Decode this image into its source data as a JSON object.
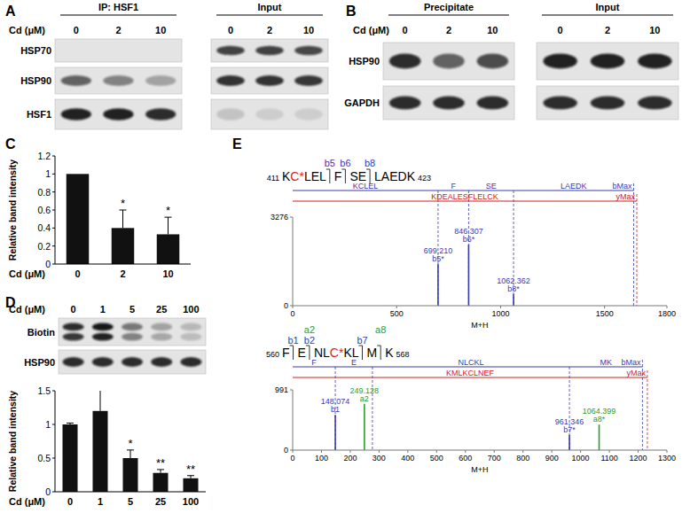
{
  "blots": [
    {
      "panel": "A",
      "condition_label": "Cd (μM)",
      "groups": [
        {
          "title": "IP: HSF1",
          "lanes": [
            "0",
            "2",
            "10"
          ]
        },
        {
          "title": "Input",
          "lanes": [
            "0",
            "2",
            "10"
          ]
        }
      ],
      "rows": [
        {
          "name": "HSP70",
          "bands": [
            [
              0,
              0,
              0
            ],
            [
              0.75,
              0.75,
              0.72
            ]
          ]
        },
        {
          "name": "HSP90",
          "bands": [
            [
              0.6,
              0.45,
              0.3
            ],
            [
              0.82,
              0.82,
              0.8
            ]
          ]
        },
        {
          "name": "HSF1",
          "bands": [
            [
              0.9,
              0.9,
              0.85
            ],
            [
              0.15,
              0.1,
              0.1
            ]
          ]
        }
      ]
    },
    {
      "panel": "B",
      "condition_label": "Cd (μM)",
      "groups": [
        {
          "title": "Precipitate",
          "lanes": [
            "0",
            "2",
            "10"
          ]
        },
        {
          "title": "Input",
          "lanes": [
            "0",
            "2",
            "10"
          ]
        }
      ],
      "rows": [
        {
          "name": "HSP90",
          "bands": [
            [
              0.85,
              0.6,
              0.7
            ],
            [
              0.9,
              0.9,
              0.9
            ]
          ]
        },
        {
          "name": "GAPDH",
          "bands": [
            [
              0.85,
              0.85,
              0.85
            ],
            [
              0.85,
              0.85,
              0.85
            ]
          ]
        }
      ]
    },
    {
      "panel": "D",
      "condition_label": "Cd (μM)",
      "groups": [
        {
          "lanes": [
            "0",
            "1",
            "5",
            "25",
            "100"
          ]
        }
      ],
      "rows": [
        {
          "name": "Biotin",
          "bands": [
            [
              [
                0.85,
                0.8
              ],
              [
                0.95,
                0.9
              ],
              [
                0.5,
                0.45
              ],
              [
                0.3,
                0.28
              ],
              [
                0.2,
                0.18
              ]
            ]
          ]
        },
        {
          "name": "HSP90",
          "bands": [
            [
              0.85,
              0.85,
              0.85,
              0.85,
              0.85
            ]
          ]
        }
      ]
    }
  ],
  "chart_data": [
    {
      "panel": "C",
      "type": "bar",
      "categories": [
        "0",
        "2",
        "10"
      ],
      "values": [
        1,
        0.4,
        0.33
      ],
      "errors": [
        null,
        0.2,
        0.19
      ],
      "significance": [
        null,
        "*",
        "*"
      ],
      "x_label": "Cd (μM)",
      "y_label": "Relative band intensity",
      "color": "#111111",
      "ylim": [
        0,
        1.2
      ],
      "yticks": [
        0,
        0.2,
        0.4,
        0.6,
        0.8,
        1,
        1.2
      ]
    },
    {
      "type": "bar",
      "categories": [
        "0",
        "1",
        "5",
        "25",
        "100"
      ],
      "values": [
        1,
        1.2,
        0.5,
        0.28,
        0.2
      ],
      "errors": [
        0.02,
        0.35,
        0.12,
        0.05,
        0.04
      ],
      "significance": [
        null,
        null,
        "*",
        "**",
        "**"
      ],
      "x_label": "Cd (μM)",
      "y_label": "Relative band intensity",
      "color": "#111111",
      "ylim": [
        0,
        1.5
      ],
      "yticks": [
        0,
        0.5,
        1,
        1.5
      ]
    },
    {
      "panel": "E",
      "type": "spectrum",
      "peptide": {
        "start": "411",
        "end": "423",
        "segments": [
          "KC*LEL",
          "F",
          "SE",
          "LAEDK"
        ],
        "ions": [
          [
            "b5"
          ],
          [
            "b6"
          ],
          [
            "b8"
          ]
        ],
        "modification": "C*",
        "modification_color": "#e02020",
        "ion_colors": {
          "a": "#2a9d2a",
          "b": "#3b3bb0"
        }
      },
      "ladder": [
        {
          "segments": [
            "KCLEL",
            "F",
            "SE",
            "LAEDK"
          ],
          "breaks": [
            699.21,
            846.307,
            1062.362
          ],
          "end": 1640,
          "end_label": "bMax",
          "color": "#3b3bb0"
        },
        {
          "segments": [
            "KDEALESFLELCK"
          ],
          "breaks": [],
          "end": 1655,
          "end_label": "yMax",
          "color": "#d02020"
        }
      ],
      "series": [
        {
          "name": "b",
          "color": "#3b3bb0",
          "x": [
            699.21,
            846.307,
            1062.362
          ],
          "values": [
            1540,
            2260,
            430
          ],
          "x_labels": [
            "699.210",
            "846.307",
            "1062.362"
          ],
          "labels": [
            "b5*",
            "b6*",
            "b8*"
          ]
        }
      ],
      "x_label": "M+H",
      "xlim": [
        0,
        1800
      ],
      "xticks": [
        0,
        500,
        1000,
        1500,
        1800
      ],
      "ylim": [
        0,
        3276
      ],
      "yticks": [
        0,
        3276
      ]
    },
    {
      "type": "spectrum",
      "peptide": {
        "start": "560",
        "end": "568",
        "segments": [
          "F",
          "E",
          "NLC*KL",
          "M",
          "K"
        ],
        "ions": [
          [
            "b1"
          ],
          [
            "a2",
            "b2"
          ],
          [
            "b7"
          ],
          [
            "a8"
          ]
        ],
        "modification": "C*",
        "modification_color": "#e02020",
        "ion_colors": {
          "a": "#2a9d2a",
          "b": "#3b3bb0"
        }
      },
      "ladder": [
        {
          "segments": [
            "F",
            "E",
            "NLCKL",
            "MK"
          ],
          "breaks": [
            148.074,
            277,
            961.346
          ],
          "end": 1215,
          "end_label": "bMax",
          "color": "#3b3bb0"
        },
        {
          "segments": [
            "KMLKCLNEF"
          ],
          "breaks": [],
          "end": 1232,
          "end_label": "yMax",
          "color": "#d02020"
        }
      ],
      "series": [
        {
          "name": "b",
          "color": "#3b3bb0",
          "x": [
            148.074,
            961.346
          ],
          "values": [
            580,
            250
          ],
          "x_labels": [
            "148.074",
            "961.346"
          ],
          "labels": [
            "b1",
            "b7*"
          ]
        },
        {
          "name": "a",
          "color": "#2a9d2a",
          "x": [
            249.128,
            1064.399
          ],
          "values": [
            760,
            420
          ],
          "x_labels": [
            "249.128",
            "1064.399"
          ],
          "labels": [
            "a2",
            "a8*"
          ]
        }
      ],
      "x_label": "M+H",
      "xlim": [
        0,
        1300
      ],
      "xticks": [
        0,
        100,
        200,
        300,
        400,
        500,
        600,
        700,
        800,
        900,
        1000,
        1100,
        1200,
        1300
      ],
      "ylim": [
        0,
        991
      ],
      "yticks": [
        0,
        991
      ]
    }
  ]
}
